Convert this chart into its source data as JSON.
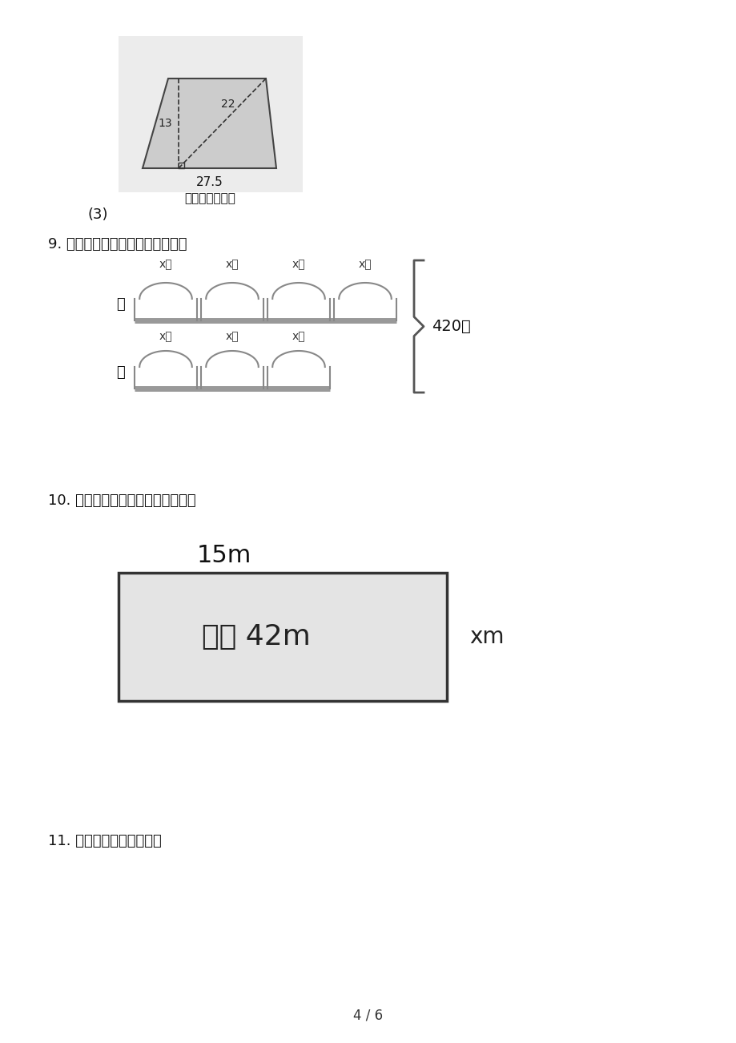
{
  "bg_color": "#ffffff",
  "page_width": 9.2,
  "page_height": 13.02,
  "para_label_h": "13",
  "para_label_diag": "22",
  "para_label_base": "27.5",
  "para_unit": "（单位：厘米）",
  "para_number": "(3)",
  "q9_text": "9. 看图列方程，并求出方程的解。",
  "q9_chicken": "鸡",
  "q9_duck": "鸭",
  "q9_box_label": "x只",
  "q9_total": "420只",
  "q10_text": "10. 看图列方程，并求出方程的解。",
  "q10_top": "15m",
  "q10_inner": "周长 42m",
  "q10_side": "xm",
  "q11_text": "11. 看图列方程，并解答。",
  "page_num": "4 / 6"
}
